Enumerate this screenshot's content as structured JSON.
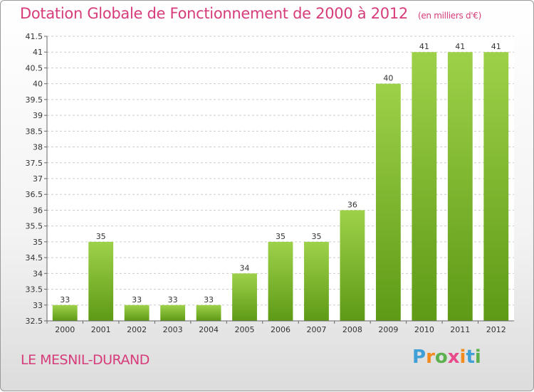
{
  "header": {
    "title": "Dotation Globale de Fonctionnement de 2000 à 2012",
    "subtitle": "(en milliers d'€)"
  },
  "footer": {
    "commune": "LE MESNIL-DURAND",
    "logo": "Proxiti"
  },
  "colors": {
    "bar_top": "#9ed14a",
    "bar_bottom": "#5e9a16",
    "title": "#d63c7a",
    "grid": "#cccccc"
  },
  "chart_data": {
    "type": "bar",
    "categories": [
      "2000",
      "2001",
      "2002",
      "2003",
      "2004",
      "2005",
      "2006",
      "2007",
      "2008",
      "2009",
      "2010",
      "2011",
      "2012"
    ],
    "values": [
      33,
      35,
      33,
      33,
      33,
      34,
      35,
      35,
      36,
      40,
      41,
      41,
      41
    ],
    "data_labels": [
      "33",
      "35",
      "33",
      "33",
      "33",
      "34",
      "35",
      "35",
      "36",
      "40",
      "41",
      "41",
      "41"
    ],
    "ylim": [
      32.5,
      41.5
    ],
    "yticks": [
      "32.5",
      "33",
      "33.5",
      "34",
      "34.5",
      "35",
      "35.5",
      "36",
      "36.5",
      "37",
      "37.5",
      "38",
      "38.5",
      "39",
      "39.5",
      "40",
      "40.5",
      "41",
      "41.5"
    ],
    "grid": true,
    "title": "Dotation Globale de Fonctionnement de 2000 à 2012",
    "xlabel": "",
    "ylabel": ""
  }
}
